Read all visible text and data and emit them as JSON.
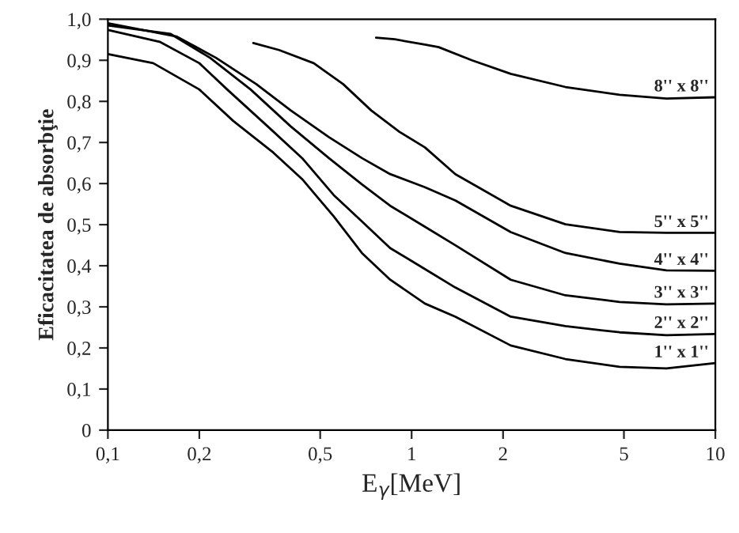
{
  "chart_data": {
    "type": "line",
    "xlabel": "E$_{γ}$[MeV]",
    "ylabel": "Eficacitatea de absorbţie",
    "log": "x",
    "xlim": [
      0.1,
      10
    ],
    "ylim": [
      0,
      1
    ],
    "xticks": [
      {
        "value": 0.1,
        "label": "0,1"
      },
      {
        "value": 0.2,
        "label": "0,2"
      },
      {
        "value": 0.5,
        "label": "0,5"
      },
      1,
      2,
      5,
      10
    ],
    "yticks": [
      0,
      {
        "value": 0.1,
        "label": "0,1"
      },
      {
        "value": 0.2,
        "label": "0,2"
      },
      {
        "value": 0.3,
        "label": "0,3"
      },
      {
        "value": 0.4,
        "label": "0,4"
      },
      {
        "value": 0.5,
        "label": "0,5"
      },
      {
        "value": 0.6,
        "label": "0,6"
      },
      {
        "value": 0.7,
        "label": "0,7"
      },
      {
        "value": 0.8,
        "label": "0,8"
      },
      {
        "value": 0.9,
        "label": "0,9"
      },
      {
        "value": 1.0,
        "label": "1,0"
      }
    ],
    "grid": false,
    "legend": false,
    "marker": "none",
    "line_style": "solid",
    "series": [
      {
        "name": "1'' x 1''",
        "color": "#000000",
        "x": [
          0.1,
          0.141,
          0.2,
          0.259,
          0.351,
          0.436,
          0.554,
          0.686,
          0.85,
          1.106,
          1.393,
          2.12,
          3.21,
          4.84,
          6.9,
          10
        ],
        "values": [
          0.915,
          0.893,
          0.829,
          0.752,
          0.675,
          0.611,
          0.52,
          0.431,
          0.366,
          0.308,
          0.276,
          0.206,
          0.173,
          0.154,
          0.15,
          0.163
        ]
      },
      {
        "name": "2'' x 2''",
        "color": "#000000",
        "x": [
          0.1,
          0.148,
          0.2,
          0.247,
          0.336,
          0.436,
          0.554,
          0.686,
          0.85,
          1.106,
          1.393,
          2.12,
          3.21,
          4.84,
          6.9,
          10
        ],
        "values": [
          0.974,
          0.945,
          0.893,
          0.829,
          0.739,
          0.662,
          0.572,
          0.508,
          0.443,
          0.392,
          0.347,
          0.276,
          0.253,
          0.238,
          0.231,
          0.234
        ]
      },
      {
        "name": "3'' x 3''",
        "color": "#000000",
        "x": [
          0.1,
          0.161,
          0.217,
          0.295,
          0.4,
          0.534,
          0.686,
          0.85,
          1.106,
          1.393,
          2.12,
          3.21,
          4.84,
          6.9,
          10
        ],
        "values": [
          0.985,
          0.964,
          0.906,
          0.829,
          0.739,
          0.662,
          0.598,
          0.546,
          0.495,
          0.45,
          0.366,
          0.328,
          0.312,
          0.306,
          0.308
        ]
      },
      {
        "name": "4'' x 4''",
        "color": "#000000",
        "x": [
          0.1,
          0.168,
          0.227,
          0.308,
          0.4,
          0.534,
          0.686,
          0.85,
          1.106,
          1.393,
          2.12,
          3.21,
          4.84,
          6.9,
          10
        ],
        "values": [
          0.99,
          0.958,
          0.906,
          0.842,
          0.778,
          0.713,
          0.662,
          0.623,
          0.591,
          0.559,
          0.482,
          0.431,
          0.405,
          0.389,
          0.388
        ]
      },
      {
        "name": "5'' x 5''",
        "color": "#000000",
        "x": [
          0.301,
          0.366,
          0.476,
          0.595,
          0.736,
          0.911,
          1.106,
          1.393,
          2.12,
          3.21,
          4.84,
          6.9,
          10
        ],
        "values": [
          0.942,
          0.925,
          0.893,
          0.842,
          0.778,
          0.726,
          0.688,
          0.623,
          0.546,
          0.501,
          0.482,
          0.48,
          0.48
        ]
      },
      {
        "name": "8'' x 8''",
        "color": "#000000",
        "x": [
          0.764,
          0.88,
          1.106,
          1.228,
          1.58,
          2.12,
          3.21,
          4.84,
          6.9,
          10
        ],
        "values": [
          0.955,
          0.951,
          0.938,
          0.932,
          0.9,
          0.867,
          0.835,
          0.816,
          0.807,
          0.81
        ]
      }
    ]
  }
}
